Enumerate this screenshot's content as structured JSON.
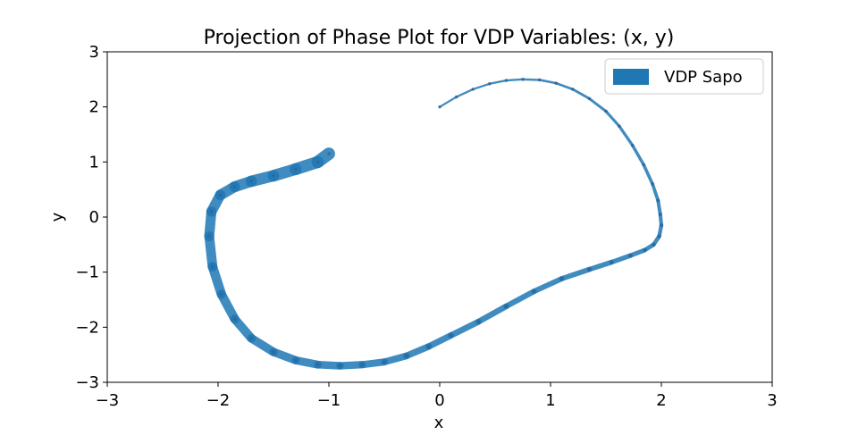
{
  "chart_data": {
    "type": "scatter",
    "title": "Projection of Phase Plot for VDP Variables: (x, y)",
    "xlabel": "x",
    "ylabel": "y",
    "xlim": [
      -3,
      3
    ],
    "ylim": [
      -3,
      3
    ],
    "xticks": [
      -3,
      -2,
      -1,
      0,
      1,
      2,
      3
    ],
    "yticks": [
      -3,
      -2,
      -1,
      0,
      1,
      2,
      3
    ],
    "xtick_labels": [
      "−3",
      "−2",
      "−1",
      "0",
      "1",
      "2",
      "3"
    ],
    "ytick_labels": [
      "−3",
      "−2",
      "−1",
      "0",
      "1",
      "2",
      "3"
    ],
    "grid": false,
    "legend": {
      "placement": "upper right",
      "entries": [
        {
          "label": "VDP Sapo",
          "color": "#1f77b4"
        }
      ]
    },
    "series": [
      {
        "name": "VDP Sapo",
        "color": "#1f77b4",
        "x": [
          0.0,
          0.15,
          0.3,
          0.45,
          0.6,
          0.75,
          0.9,
          1.05,
          1.2,
          1.35,
          1.5,
          1.62,
          1.74,
          1.84,
          1.92,
          1.97,
          1.99,
          2.0,
          1.98,
          1.93,
          1.85,
          1.72,
          1.55,
          1.35,
          1.1,
          0.85,
          0.6,
          0.35,
          0.1,
          -0.1,
          -0.3,
          -0.5,
          -0.7,
          -0.9,
          -1.1,
          -1.3,
          -1.5,
          -1.7,
          -1.85,
          -1.97,
          -2.05,
          -2.08,
          -2.06,
          -1.98,
          -1.85,
          -1.7,
          -1.5,
          -1.3,
          -1.1,
          -1.0
        ],
        "y": [
          2.0,
          2.18,
          2.32,
          2.42,
          2.48,
          2.5,
          2.49,
          2.43,
          2.32,
          2.15,
          1.92,
          1.65,
          1.3,
          0.95,
          0.6,
          0.3,
          0.05,
          -0.15,
          -0.35,
          -0.5,
          -0.6,
          -0.7,
          -0.82,
          -0.95,
          -1.12,
          -1.35,
          -1.62,
          -1.9,
          -2.15,
          -2.35,
          -2.52,
          -2.63,
          -2.68,
          -2.7,
          -2.68,
          -2.6,
          -2.45,
          -2.2,
          -1.85,
          -1.4,
          -0.9,
          -0.35,
          0.1,
          0.4,
          0.55,
          0.65,
          0.75,
          0.87,
          1.0,
          1.15
        ]
      }
    ]
  }
}
